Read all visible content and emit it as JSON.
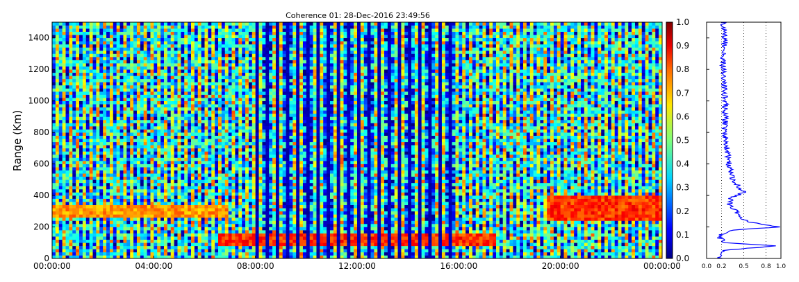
{
  "chart_data": [
    {
      "type": "heatmap",
      "title": "Coherence 01: 28-Dec-2016 23:49:56",
      "xlabel": "",
      "ylabel": "Range (Km)",
      "x_ticks": [
        "00:00:00",
        "04:00:00",
        "08:00:00",
        "12:00:00",
        "16:00:00",
        "20:00:00",
        "00:00:00"
      ],
      "x_range": [
        "00:00:00",
        "24:00:00"
      ],
      "y_ticks": [
        0,
        200,
        400,
        600,
        800,
        1000,
        1200,
        1400
      ],
      "ylim": [
        0,
        1500
      ],
      "colorscale": "jet",
      "colorbar": {
        "ticks": [
          "0.0",
          "0.1",
          "0.2",
          "0.3",
          "0.4",
          "0.5",
          "0.6",
          "0.7",
          "0.8",
          "0.9",
          "1.0"
        ],
        "range": [
          0.0,
          1.0
        ]
      },
      "features": [
        {
          "hours": [
            0,
            7
          ],
          "range_km": [
            270,
            330
          ],
          "coherence": 0.8
        },
        {
          "hours": [
            6.5,
            17.5
          ],
          "range_km": [
            90,
            150
          ],
          "coherence": 0.9
        },
        {
          "hours": [
            19.5,
            24
          ],
          "range_km": [
            250,
            390
          ],
          "coherence": 0.9
        },
        {
          "hours": [
            8,
            16
          ],
          "alternating_dark_columns": true,
          "coherence": 0.05
        }
      ],
      "grid": false
    },
    {
      "type": "line",
      "xlim": [
        0.0,
        1.0
      ],
      "ylim": [
        0,
        1500
      ],
      "x_ticks": [
        "0.0",
        "0.2",
        "0.5",
        "0.8",
        "1.0"
      ],
      "profile_ranges_km": [
        0,
        50,
        80,
        100,
        130,
        150,
        180,
        200,
        230,
        260,
        300,
        340,
        380,
        420,
        500,
        600,
        800,
        1000,
        1200,
        1400,
        1500
      ],
      "profile_values": [
        0.18,
        0.2,
        0.95,
        0.25,
        0.18,
        0.2,
        0.35,
        0.98,
        0.6,
        0.45,
        0.4,
        0.3,
        0.32,
        0.5,
        0.35,
        0.3,
        0.25,
        0.25,
        0.22,
        0.25,
        0.22
      ],
      "line_color": "#0000ff",
      "grid": "vertical-dotted"
    }
  ]
}
